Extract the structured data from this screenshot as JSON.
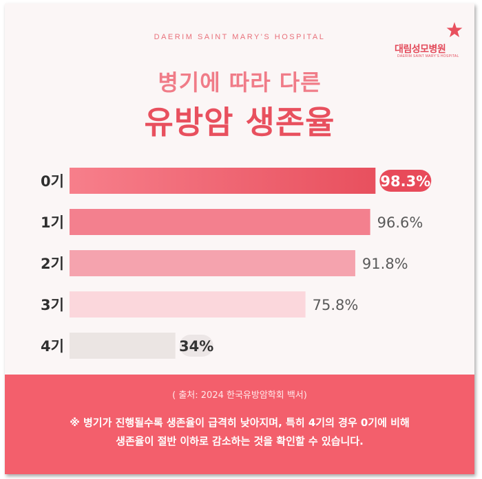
{
  "header": {
    "hospital_en": "DAERIM SAINT MARY'S HOSPITAL",
    "logo_ko": "대림성모병원",
    "logo_en": "DAERIM SAINT MARY'S HOSPITAL",
    "title_line1": "병기에 따라 다른",
    "title_line2": "유방암 생존율"
  },
  "colors": {
    "brand": "#e8505e",
    "footer_bg": "#f35f6c",
    "highlight_label_bg": "#e84a5a",
    "plain_label_bg": "#ece6e6"
  },
  "chart_data": {
    "type": "bar",
    "orientation": "horizontal",
    "categories": [
      "0기",
      "1기",
      "2기",
      "3기",
      "4기"
    ],
    "values": [
      98.3,
      96.6,
      91.8,
      75.8,
      34
    ],
    "value_labels": [
      "98.3%",
      "96.6%",
      "91.8%",
      "75.8%",
      "34%"
    ],
    "bar_colors": [
      "#e8505e",
      "#f3808e",
      "#f5a3ae",
      "#fbd7dc",
      "#ebe5e3"
    ],
    "xlim": [
      0,
      100
    ],
    "grid": false,
    "legend": "none"
  },
  "footer": {
    "source": "( 출처: 2024 한국유방암학회 백서)",
    "note_line1": "※ 병기가 진행될수록 생존율이 급격히 낮아지며, 특히 4기의 경우 0기에 비해",
    "note_line2": "생존율이 절반 이하로 감소하는 것을 확인할 수 있습니다."
  }
}
